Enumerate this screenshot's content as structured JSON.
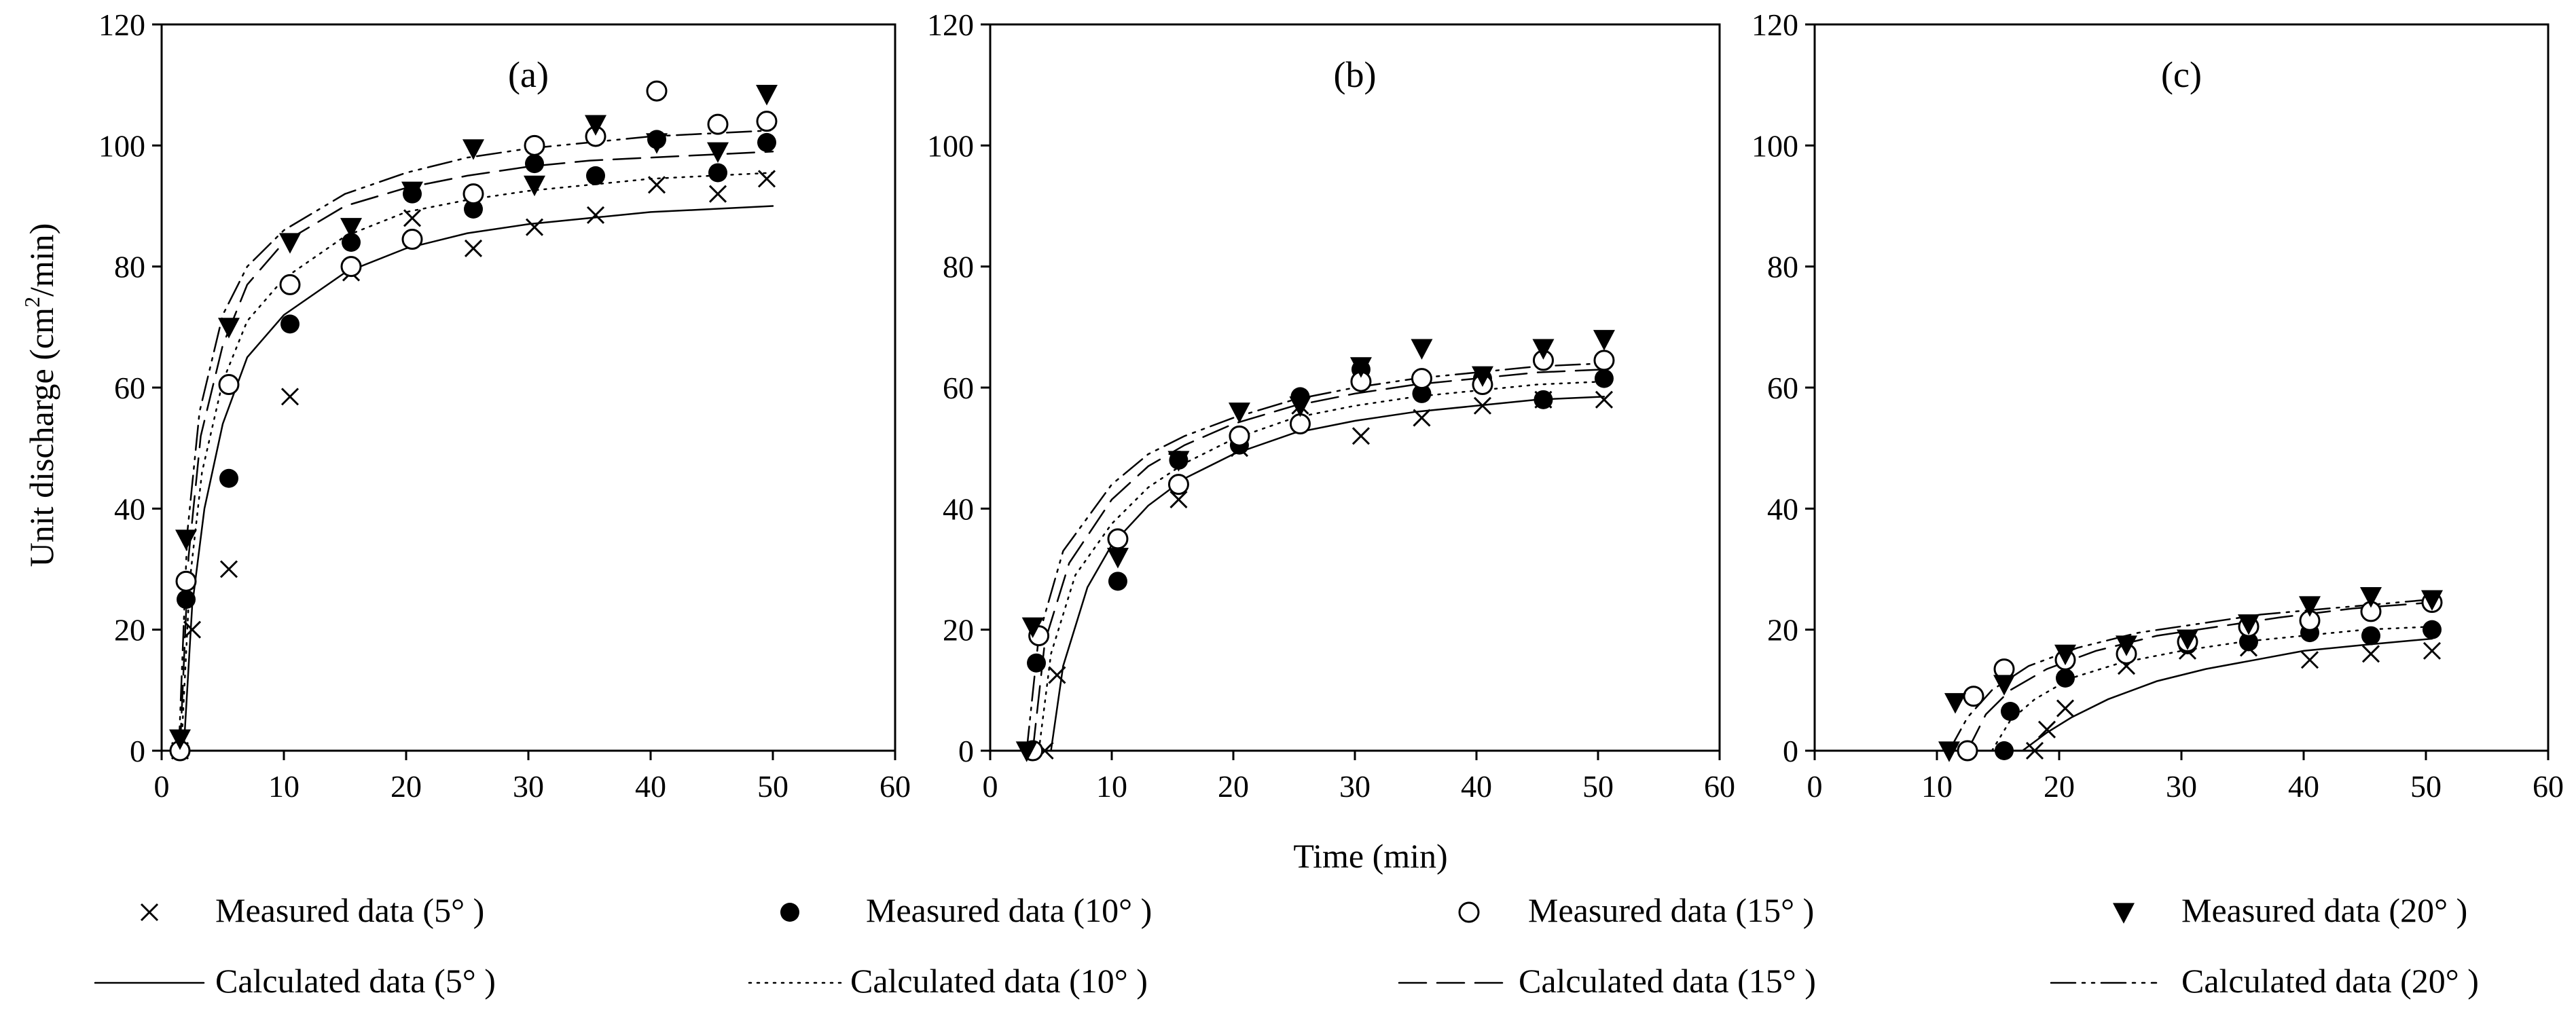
{
  "chart_data": {
    "type": "scatter",
    "ylabel": "Unit discharge (cm²/min)",
    "ylabel_main": "Unit discharge (cm",
    "ylabel_sup": "2",
    "ylabel_tail": "/min)",
    "xlabel": "Time (min)",
    "xlim": [
      0,
      60
    ],
    "ylim": [
      0,
      120
    ],
    "x_ticks": [
      "0",
      "10",
      "20",
      "30",
      "40",
      "50",
      "60"
    ],
    "y_ticks": [
      "0",
      "20",
      "40",
      "60",
      "80",
      "100",
      "120"
    ],
    "grid": false,
    "legend": {
      "measured": [
        {
          "label": "Measured data (5° )",
          "marker": "x"
        },
        {
          "label": "Measured data (10° )",
          "marker": "filled-circle"
        },
        {
          "label": "Measured data (15° )",
          "marker": "open-circle"
        },
        {
          "label": "Measured data (20° )",
          "marker": "filled-triangle-down"
        }
      ],
      "calculated": [
        {
          "label": "Calculated data (5° )",
          "style": "solid"
        },
        {
          "label": "Calculated data (10° )",
          "style": "dotted"
        },
        {
          "label": "Calculated data (15° )",
          "style": "dashed"
        },
        {
          "label": "Calculated data (20° )",
          "style": "dash-dot-dot"
        }
      ]
    },
    "panels": [
      {
        "label": "(a)",
        "measured": [
          {
            "name": "5°",
            "marker": "x",
            "x": [
              1.5,
              2.5,
              5.5,
              10.5,
              15.5,
              20.5,
              25.5,
              30.5,
              35.5,
              40.5,
              45.5,
              49.5
            ],
            "y": [
              0,
              20,
              30,
              58.5,
              79,
              88,
              83,
              86.5,
              88.5,
              93.5,
              92,
              94.5
            ]
          },
          {
            "name": "10°",
            "marker": "filled-circle",
            "x": [
              1.5,
              2,
              5.5,
              10.5,
              15.5,
              20.5,
              25.5,
              30.5,
              35.5,
              40.5,
              45.5,
              49.5
            ],
            "y": [
              0,
              25,
              45,
              70.5,
              84,
              92,
              89.5,
              97,
              95,
              101,
              95.5,
              100.5
            ]
          },
          {
            "name": "15°",
            "marker": "open-circle",
            "x": [
              1.5,
              2,
              5.5,
              10.5,
              15.5,
              20.5,
              25.5,
              30.5,
              35.5,
              40.5,
              45.5,
              49.5
            ],
            "y": [
              0,
              28,
              60.5,
              77,
              80,
              84.5,
              92,
              100,
              101.5,
              109,
              103.5,
              104
            ]
          },
          {
            "name": "20°",
            "marker": "filled-triangle-down",
            "x": [
              1.5,
              2,
              5.5,
              10.5,
              15.5,
              20.5,
              25.5,
              30.5,
              35.5,
              40.5,
              45.5,
              49.5
            ],
            "y": [
              2,
              35,
              70,
              84,
              86.5,
              92.5,
              99.5,
              93.5,
              103.5,
              100.5,
              99,
              108.5
            ]
          }
        ],
        "calculated": [
          {
            "name": "5°",
            "style": "solid",
            "x": [
              1.8,
              2.5,
              3.5,
              5,
              7,
              10,
              15,
              20,
              25,
              30,
              35,
              40,
              45,
              50
            ],
            "y": [
              0,
              24,
              40,
              54,
              65,
              72,
              79,
              83,
              85.5,
              87,
              88,
              89,
              89.5,
              90
            ]
          },
          {
            "name": "10°",
            "style": "dotted",
            "x": [
              1.6,
              2.3,
              3.3,
              5,
              7,
              10,
              15,
              20,
              25,
              30,
              35,
              40,
              45,
              50
            ],
            "y": [
              0,
              28,
              46,
              61,
              71,
              78,
              85,
              89,
              91,
              92.5,
              93.5,
              94.5,
              95,
              95.5
            ]
          },
          {
            "name": "15°",
            "style": "dashed",
            "x": [
              1.5,
              2.2,
              3.2,
              5,
              7,
              10,
              15,
              20,
              25,
              30,
              35,
              40,
              45,
              50
            ],
            "y": [
              0,
              32,
              52,
              67,
              77,
              84,
              90,
              93,
              95,
              96.5,
              97.5,
              98,
              98.5,
              99
            ]
          },
          {
            "name": "20°",
            "style": "dash-dot-dot",
            "x": [
              1.4,
              2.1,
              3.1,
              5,
              7,
              10,
              15,
              20,
              25,
              30,
              35,
              40,
              45,
              50
            ],
            "y": [
              0,
              36,
              56,
              72,
              80,
              86,
              92,
              95.5,
              98,
              99.5,
              100.5,
              101.5,
              102,
              102.5
            ]
          }
        ]
      },
      {
        "label": "(b)",
        "measured": [
          {
            "name": "5°",
            "marker": "x",
            "x": [
              4.5,
              5.5,
              15.5,
              20.5,
              25.5,
              30.5,
              35.5,
              40.5,
              45.5,
              50.5
            ],
            "y": [
              0,
              12.5,
              41.5,
              50,
              57,
              52,
              55,
              57,
              58,
              58
            ]
          },
          {
            "name": "10°",
            "marker": "filled-circle",
            "x": [
              3.5,
              3.8,
              10.5,
              15.5,
              20.5,
              25.5,
              30.5,
              35.5,
              40.5,
              45.5,
              50.5
            ],
            "y": [
              0,
              14.5,
              28,
              48,
              50.5,
              58.5,
              63,
              59,
              61.5,
              58,
              61.5
            ]
          },
          {
            "name": "15°",
            "marker": "open-circle",
            "x": [
              3.5,
              4,
              10.5,
              15.5,
              20.5,
              25.5,
              30.5,
              35.5,
              40.5,
              45.5,
              50.5
            ],
            "y": [
              0,
              19,
              35,
              44,
              52,
              54,
              61,
              61.5,
              60.5,
              64.5,
              64.5
            ]
          },
          {
            "name": "20°",
            "marker": "filled-triangle-down",
            "x": [
              3,
              3.5,
              10.5,
              15.5,
              20.5,
              25.5,
              30.5,
              35.5,
              40.5,
              45.5,
              50.5
            ],
            "y": [
              0,
              20.5,
              32,
              48,
              56,
              57,
              63.5,
              66.5,
              62,
              66.5,
              68
            ]
          }
        ],
        "calculated": [
          {
            "name": "5°",
            "style": "solid",
            "x": [
              5,
              6,
              8,
              10,
              13,
              16,
              20,
              25,
              30,
              35,
              40,
              45,
              50.5
            ],
            "y": [
              0,
              14,
              27,
              34,
              40.5,
              45,
              49,
              52.5,
              54.5,
              56,
              57,
              58,
              58.5
            ]
          },
          {
            "name": "10°",
            "style": "dotted",
            "x": [
              4,
              5,
              7,
              10,
              13,
              16,
              20,
              25,
              30,
              35,
              40,
              45,
              50.5
            ],
            "y": [
              0,
              16,
              29,
              37.5,
              43.5,
              47.5,
              51.5,
              55,
              57,
              58.5,
              59.5,
              60.5,
              61
            ]
          },
          {
            "name": "15°",
            "style": "dashed",
            "x": [
              3.5,
              4.5,
              6.5,
              10,
              13,
              16,
              20,
              25,
              30,
              35,
              40,
              45,
              50.5
            ],
            "y": [
              0,
              18,
              31,
              41.5,
              47,
              50.5,
              54,
              57,
              59,
              60.5,
              61.5,
              62.5,
              63
            ]
          },
          {
            "name": "20°",
            "style": "dash-dot-dot",
            "x": [
              3,
              4,
              6,
              10,
              13,
              16,
              20,
              25,
              30,
              35,
              40,
              45,
              50.5
            ],
            "y": [
              0,
              19,
              33,
              44,
              49,
              52,
              55,
              58,
              60,
              61.5,
              62.5,
              63.5,
              64
            ]
          }
        ]
      },
      {
        "label": "(c)",
        "measured": [
          {
            "name": "5°",
            "marker": "x",
            "x": [
              18,
              19,
              20.5,
              25.5,
              30.5,
              35.5,
              40.5,
              45.5,
              50.5
            ],
            "y": [
              0,
              3.5,
              7,
              14,
              16.5,
              17,
              15,
              16,
              16.5
            ]
          },
          {
            "name": "10°",
            "marker": "filled-circle",
            "x": [
              15.5,
              16,
              20.5,
              25.5,
              30.5,
              35.5,
              40.5,
              45.5,
              50.5
            ],
            "y": [
              0,
              6.5,
              12,
              16,
              17.5,
              18,
              19.5,
              19,
              20
            ]
          },
          {
            "name": "15°",
            "marker": "open-circle",
            "x": [
              12.5,
              13,
              15.5,
              20.5,
              25.5,
              30.5,
              35.5,
              40.5,
              45.5,
              50.5
            ],
            "y": [
              0,
              9,
              13.5,
              15,
              16,
              18,
              20.5,
              21.5,
              23,
              24.5
            ]
          },
          {
            "name": "20°",
            "marker": "filled-triangle-down",
            "x": [
              11,
              11.5,
              15.5,
              20.5,
              25.5,
              30.5,
              35.5,
              40.5,
              45.5,
              50.5
            ],
            "y": [
              0,
              8,
              11,
              16,
              17.5,
              18.5,
              21,
              24,
              25.5,
              25
            ]
          }
        ],
        "calculated": [
          {
            "name": "5°",
            "style": "solid",
            "x": [
              17,
              19,
              21,
              24,
              28,
              32,
              36,
              40,
              45,
              50.5
            ],
            "y": [
              0,
              3,
              5.5,
              8.5,
              11.5,
              13.5,
              15,
              16.5,
              17.5,
              18.5
            ]
          },
          {
            "name": "10°",
            "style": "dotted",
            "x": [
              14.5,
              16,
              18,
              21,
              25,
              30,
              35,
              40,
              45,
              50.5
            ],
            "y": [
              0,
              5,
              8.5,
              12,
              14.5,
              16.5,
              18,
              19,
              20,
              20.5
            ]
          },
          {
            "name": "15°",
            "style": "dashed",
            "x": [
              12.5,
              14,
              16,
              19,
              23,
              28,
              33,
              38,
              44,
              50.5
            ],
            "y": [
              0,
              6,
              10,
              13.5,
              16.5,
              19,
              20.5,
              22,
              23.5,
              24.5
            ]
          },
          {
            "name": "20°",
            "style": "dash-dot-dot",
            "x": [
              11,
              12.5,
              14.5,
              17.5,
              21.5,
              26.5,
              31.5,
              36.5,
              42,
              50.5
            ],
            "y": [
              0,
              5.5,
              10,
              14,
              17,
              19.5,
              21,
              22.5,
              23.5,
              25
            ]
          }
        ]
      }
    ]
  }
}
